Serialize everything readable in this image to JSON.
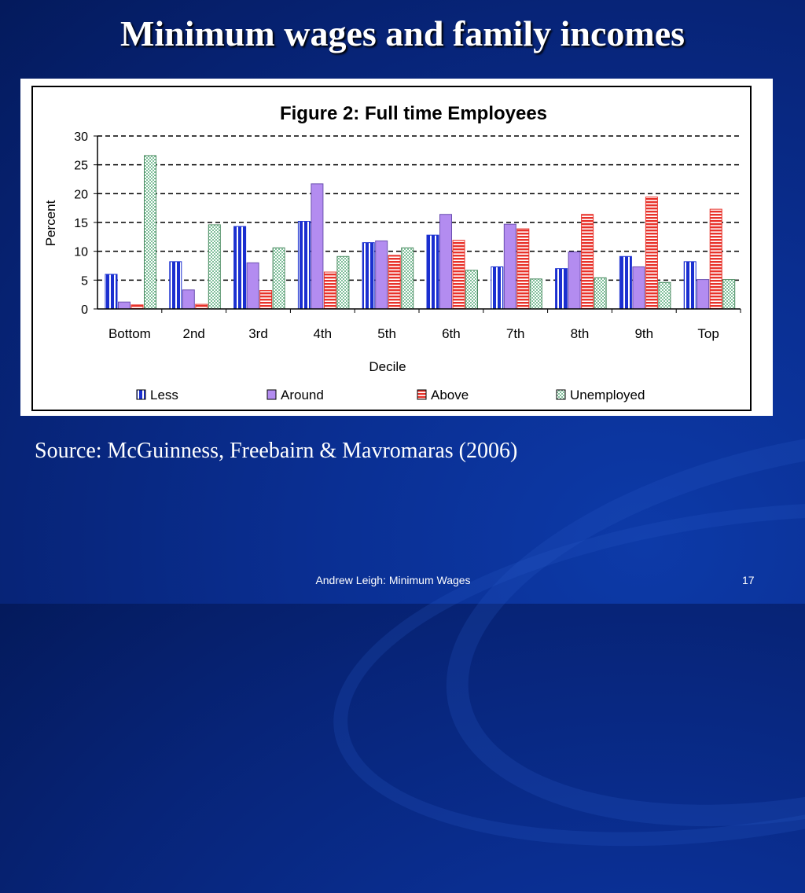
{
  "slide": {
    "title": "Minimum wages and family incomes",
    "source": "Source: McGuinness, Freebairn & Mavromaras (2006)",
    "footer": "Andrew Leigh: Minimum Wages",
    "page_number": "17"
  },
  "chart_data": {
    "type": "bar",
    "title": "Figure 2: Full time Employees",
    "xlabel": "Decile",
    "ylabel": "Percent",
    "ylim": [
      0,
      30
    ],
    "yticks": [
      0,
      5,
      10,
      15,
      20,
      25,
      30
    ],
    "grid": true,
    "legend_position": "bottom",
    "categories": [
      "Bottom",
      "2nd",
      "3rd",
      "4th",
      "5th",
      "6th",
      "7th",
      "8th",
      "9th",
      "Top"
    ],
    "series": [
      {
        "name": "Less",
        "color": "#1a2fd0",
        "values": [
          6,
          8.2,
          14.3,
          15.2,
          11.5,
          12.8,
          7.3,
          7,
          9.1,
          8.2
        ]
      },
      {
        "name": "Around",
        "color": "#b38cf0",
        "values": [
          1.2,
          3.3,
          8,
          21.7,
          11.8,
          16.4,
          14.7,
          9.9,
          7.3,
          5.1
        ]
      },
      {
        "name": "Above",
        "color": "#e8322a",
        "values": [
          0.7,
          0.8,
          3.2,
          6.4,
          9.3,
          11.9,
          13.9,
          16.4,
          19.4,
          17.3
        ]
      },
      {
        "name": "Unemployed",
        "color": "#e6f5e6",
        "values": [
          26.6,
          14.6,
          10.6,
          9.1,
          10.6,
          6.7,
          5.2,
          5.4,
          4.6,
          5.1
        ]
      }
    ]
  }
}
